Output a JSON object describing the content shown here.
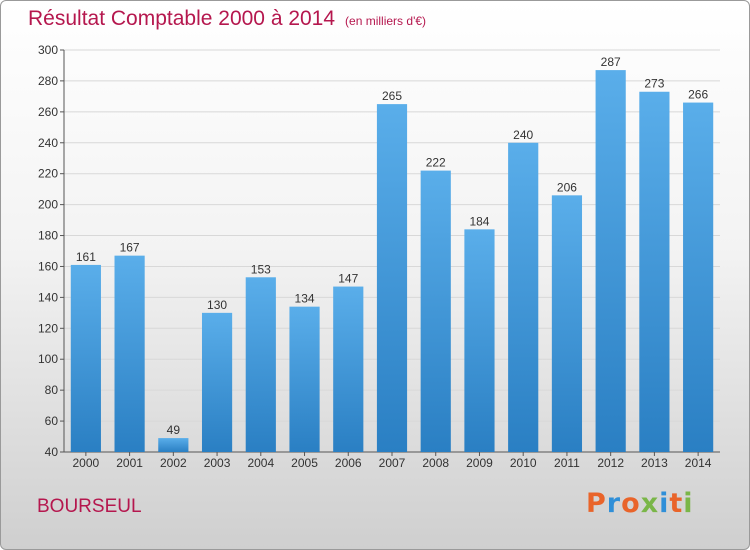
{
  "header": {
    "title": "Résultat Comptable 2000 à 2014",
    "subtitle": "(en milliers d'€)"
  },
  "footer": {
    "commune": "BOURSEUL",
    "brand": [
      "P",
      "r",
      "o",
      "x",
      "i",
      "t",
      "i"
    ],
    "brand_colors": [
      "#e9642a",
      "#2f8fd8",
      "#e9642a",
      "#7ab648",
      "#2f8fd8",
      "#e9642a",
      "#7ab648"
    ]
  },
  "colors": {
    "bar_top": "#5aaeea",
    "bar_bottom": "#2a7fc3",
    "grid": "#d8d8d8",
    "text": "#333333",
    "accent": "#b5174e"
  },
  "chart_data": {
    "type": "bar",
    "title": "Résultat Comptable 2000 à 2014",
    "subtitle": "(en milliers d'€)",
    "xlabel": "",
    "ylabel": "",
    "categories": [
      "2000",
      "2001",
      "2002",
      "2003",
      "2004",
      "2005",
      "2006",
      "2007",
      "2008",
      "2009",
      "2010",
      "2011",
      "2012",
      "2013",
      "2014"
    ],
    "values": [
      161,
      167,
      49,
      130,
      153,
      134,
      147,
      265,
      222,
      184,
      240,
      206,
      287,
      273,
      266
    ],
    "ylim": [
      40,
      300
    ],
    "yticks": [
      40,
      60,
      80,
      100,
      120,
      140,
      160,
      180,
      200,
      220,
      240,
      260,
      280,
      300
    ],
    "grid": true,
    "data_labels": true
  }
}
